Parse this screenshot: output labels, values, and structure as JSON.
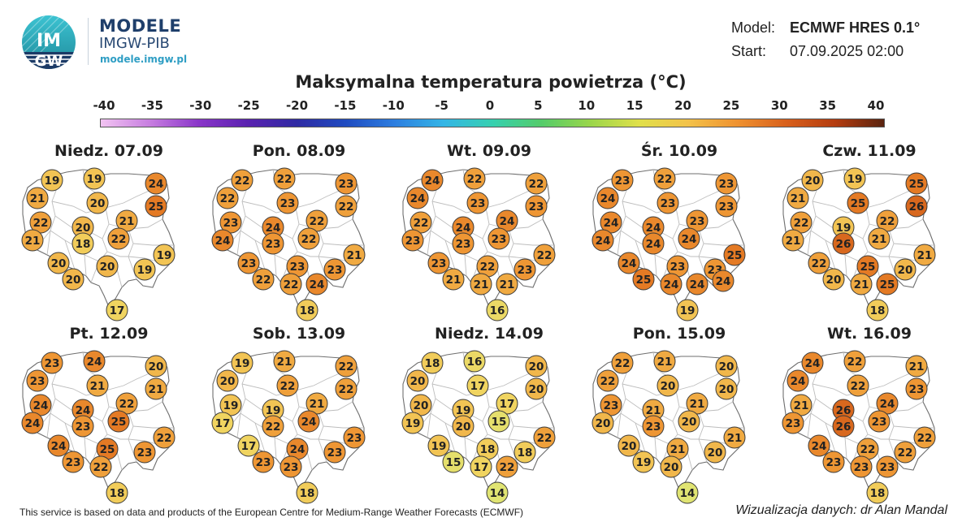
{
  "header": {
    "brand_title": "MODELE",
    "brand_subtitle": "IMGW-PIB",
    "brand_url": "modele.imgw.pl",
    "logo_text_top": "IM",
    "logo_text_bottom": "GW",
    "model_label": "Model:",
    "model_value": "ECMWF HRES 0.1°",
    "start_label": "Start:",
    "start_value": "07.09.2025 02:00"
  },
  "title": "Maksymalna temperatura powietrza (°C)",
  "scale": {
    "ticks": [
      "-40",
      "-35",
      "-30",
      "-25",
      "-20",
      "-15",
      "-10",
      "-5",
      "0",
      "5",
      "10",
      "15",
      "20",
      "25",
      "30",
      "35",
      "40"
    ],
    "colors": [
      "#f2c4f2",
      "#c77ee0",
      "#8a36c9",
      "#5a22b0",
      "#2f2aa3",
      "#1f4bc0",
      "#2d7ee0",
      "#34b5e6",
      "#36d0b0",
      "#54cc6a",
      "#9ad64a",
      "#e0e04a",
      "#f3c24a",
      "#ef9230",
      "#d8601c",
      "#b43c10",
      "#5a2410"
    ]
  },
  "days": [
    {
      "label": "Niedz. 07.09",
      "temps": [
        19,
        19,
        24,
        21,
        20,
        25,
        22,
        20,
        21,
        21,
        18,
        22,
        19,
        20,
        20,
        19,
        20,
        17
      ]
    },
    {
      "label": "Pon. 08.09",
      "temps": [
        22,
        22,
        23,
        22,
        23,
        22,
        23,
        24,
        22,
        24,
        23,
        22,
        21,
        23,
        23,
        23,
        22,
        22,
        24,
        18
      ]
    },
    {
      "label": "Wt. 09.09",
      "temps": [
        24,
        22,
        22,
        24,
        23,
        23,
        22,
        24,
        24,
        23,
        23,
        23,
        22,
        23,
        22,
        23,
        21,
        21,
        21,
        16
      ]
    },
    {
      "label": "Śr. 10.09",
      "temps": [
        23,
        22,
        23,
        24,
        23,
        23,
        24,
        24,
        23,
        24,
        24,
        24,
        25,
        24,
        23,
        23,
        25,
        24,
        24,
        24,
        19
      ]
    },
    {
      "label": "Czw. 11.09",
      "temps": [
        20,
        19,
        25,
        21,
        25,
        26,
        22,
        19,
        22,
        21,
        26,
        21,
        21,
        22,
        25,
        20,
        20,
        21,
        25,
        18
      ]
    },
    {
      "label": "Pt. 12.09",
      "temps": [
        23,
        24,
        20,
        23,
        21,
        21,
        24,
        24,
        22,
        24,
        23,
        25,
        22,
        24,
        25,
        23,
        23,
        22,
        18
      ]
    },
    {
      "label": "Sob. 13.09",
      "temps": [
        19,
        21,
        22,
        20,
        22,
        22,
        19,
        19,
        21,
        17,
        22,
        24,
        23,
        17,
        24,
        23,
        23,
        23,
        18
      ]
    },
    {
      "label": "Niedz. 14.09",
      "temps": [
        18,
        16,
        20,
        20,
        17,
        20,
        20,
        19,
        17,
        19,
        20,
        15,
        22,
        19,
        18,
        18,
        15,
        17,
        22,
        14
      ]
    },
    {
      "label": "Pon. 15.09",
      "temps": [
        22,
        21,
        20,
        22,
        20,
        20,
        23,
        21,
        21,
        20,
        23,
        20,
        21,
        20,
        21,
        20,
        19,
        20,
        14
      ]
    },
    {
      "label": "Wt. 16.09",
      "temps": [
        24,
        22,
        21,
        24,
        22,
        23,
        21,
        26,
        24,
        23,
        26,
        23,
        22,
        24,
        22,
        22,
        23,
        23,
        23,
        18
      ]
    }
  ],
  "footer_left": "This service is based on data and products of the European Centre for Medium-Range Weather Forecasts (ECMWF)",
  "footer_right": "Wizualizacja danych: dr Alan Mandal"
}
